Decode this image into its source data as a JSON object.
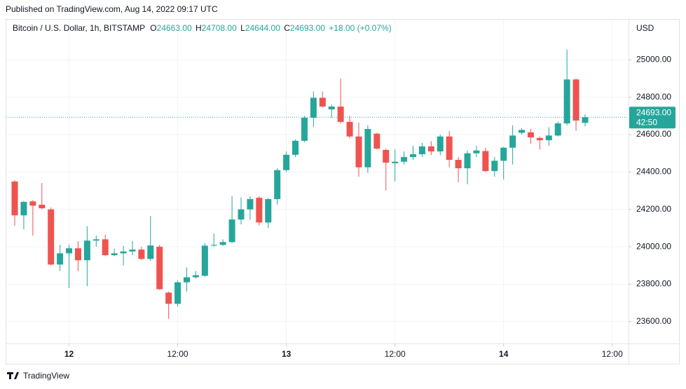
{
  "header": {
    "published": "Published on TradingView.com, Aug 14, 2022 09:17 UTC"
  },
  "footer": {
    "brand": "TradingView"
  },
  "chart_data": {
    "type": "candlestick",
    "title": "Bitcoin / U.S. Dollar, 1h, BITSTAMP",
    "ohlc_header": {
      "o_label": "O",
      "o": "24663.00",
      "h_label": "H",
      "h": "24708.00",
      "l_label": "L",
      "l": "24644.00",
      "c_label": "C",
      "c": "24693.00",
      "change": "+18.00 (+0.07%)"
    },
    "currency": "USD",
    "up_color": "#26a69a",
    "down_color": "#ef5350",
    "grid": true,
    "open": [
      24349,
      24168,
      24243,
      24225,
      24200,
      23905,
      23965,
      23992,
      23928,
      24033,
      24040,
      23955,
      23965,
      23975,
      23985,
      23935,
      24000,
      23755,
      23695,
      23810,
      23837,
      23845,
      24006,
      24010,
      24025,
      24146,
      24200,
      24262,
      24130,
      24255,
      24410,
      24492,
      24567,
      24690,
      24797,
      24735,
      24750,
      24668,
      24590,
      24425,
      24605,
      24518,
      24447,
      24455,
      24480,
      24495,
      24537,
      24510,
      24590,
      24465,
      24420,
      24500,
      24512,
      24405,
      24460,
      24530,
      24610,
      24612,
      24582,
      24570,
      24595,
      24660,
      24895,
      24663
    ],
    "high": [
      24356,
      24245,
      24250,
      24341,
      24210,
      24010,
      24010,
      24030,
      24110,
      24060,
      24065,
      23990,
      24005,
      24030,
      24000,
      24165,
      24010,
      23760,
      23820,
      23890,
      23870,
      24020,
      24070,
      24040,
      24270,
      24265,
      24270,
      24270,
      24260,
      24420,
      24510,
      24575,
      24700,
      24830,
      24830,
      24760,
      24900,
      24700,
      24665,
      24650,
      24610,
      24525,
      24520,
      24510,
      24540,
      24555,
      24565,
      24600,
      24620,
      24480,
      24515,
      24540,
      24530,
      24480,
      24535,
      24650,
      24635,
      24630,
      24590,
      24640,
      24670,
      25055,
      24900,
      24708
    ],
    "low": [
      24112,
      24093,
      24059,
      24200,
      23900,
      23870,
      23780,
      23870,
      23790,
      24000,
      23950,
      23950,
      23900,
      23955,
      23930,
      23925,
      23770,
      23615,
      23680,
      23760,
      23830,
      23840,
      24000,
      24005,
      24020,
      24120,
      24145,
      24115,
      24100,
      24225,
      24400,
      24480,
      24560,
      24640,
      24745,
      24690,
      24660,
      24580,
      24375,
      24395,
      24522,
      24300,
      24350,
      24440,
      24465,
      24480,
      24490,
      24490,
      24425,
      24345,
      24335,
      24480,
      24400,
      24375,
      24360,
      24440,
      24600,
      24550,
      24520,
      24540,
      24590,
      24650,
      24620,
      24644
    ],
    "close": [
      24168,
      24240,
      24220,
      24206,
      23905,
      23965,
      23992,
      23928,
      24033,
      24040,
      23955,
      23965,
      23975,
      23985,
      23935,
      24007,
      23773,
      23695,
      23810,
      23837,
      23848,
      24006,
      24010,
      24025,
      24146,
      24200,
      24255,
      24130,
      24255,
      24410,
      24492,
      24567,
      24690,
      24797,
      24750,
      24750,
      24668,
      24590,
      24425,
      24630,
      24525,
      24450,
      24455,
      24480,
      24495,
      24537,
      24510,
      24590,
      24465,
      24420,
      24500,
      24515,
      24405,
      24460,
      24530,
      24595,
      24625,
      24585,
      24570,
      24595,
      24660,
      24895,
      24675,
      24693
    ],
    "xlim": [
      -0.93,
      67.8
    ],
    "xticks": [
      {
        "value": 6,
        "label": "12"
      },
      {
        "value": 18,
        "label": "12:00"
      },
      {
        "value": 30,
        "label": "13"
      },
      {
        "value": 42,
        "label": "12:00"
      },
      {
        "value": 54,
        "label": "14"
      },
      {
        "value": 66,
        "label": "12:00"
      }
    ],
    "ylim": [
      23483,
      25215
    ],
    "yticks": [
      {
        "value": 23600,
        "label": "23600.00"
      },
      {
        "value": 23800,
        "label": "23800.00"
      },
      {
        "value": 24000,
        "label": "24000.00"
      },
      {
        "value": 24200,
        "label": "24200.00"
      },
      {
        "value": 24400,
        "label": "24400.00"
      },
      {
        "value": 24600,
        "label": "24600.00"
      },
      {
        "value": 24800,
        "label": "24800.00"
      },
      {
        "value": 25000,
        "label": "25000.00"
      }
    ],
    "last_price": {
      "value": 24693,
      "label": "24693.00",
      "countdown": "42:50"
    }
  }
}
